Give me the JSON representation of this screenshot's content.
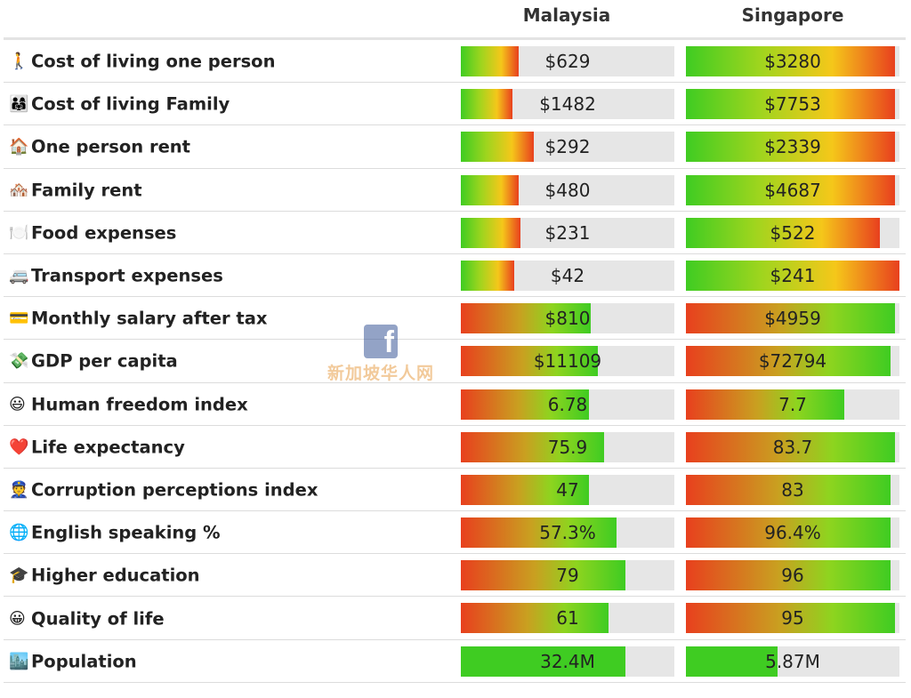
{
  "columns": [
    "Malaysia",
    "Singapore"
  ],
  "colors": {
    "cost_gradient": "#3fcc22 → #ffd21e → #e8401e",
    "benefit_gradient": "#e8401e → #a0d020 → #3fcc22",
    "population": "#3fcc22",
    "track": "#e6e6e6"
  },
  "rows": [
    {
      "icon": "walking-person-icon",
      "emoji": "🚶",
      "label": "Cost of living one person",
      "type": "cost",
      "a": {
        "value": "$629",
        "fraction": 0.27
      },
      "b": {
        "value": "$3280",
        "fraction": 0.98
      }
    },
    {
      "icon": "family-icon",
      "emoji": "👨‍👩‍👧",
      "label": "Cost of living Family",
      "type": "cost",
      "a": {
        "value": "$1482",
        "fraction": 0.24
      },
      "b": {
        "value": "$7753",
        "fraction": 0.98
      }
    },
    {
      "icon": "house-icon",
      "emoji": "🏠",
      "label": "One person rent",
      "type": "cost",
      "a": {
        "value": "$292",
        "fraction": 0.34
      },
      "b": {
        "value": "$2339",
        "fraction": 0.98
      }
    },
    {
      "icon": "houses-icon",
      "emoji": "🏘️",
      "label": "Family rent",
      "type": "cost",
      "a": {
        "value": "$480",
        "fraction": 0.27
      },
      "b": {
        "value": "$4687",
        "fraction": 0.98
      }
    },
    {
      "icon": "plate-icon",
      "emoji": "🍽️",
      "label": "Food expenses",
      "type": "cost",
      "a": {
        "value": "$231",
        "fraction": 0.28
      },
      "b": {
        "value": "$522",
        "fraction": 0.91
      }
    },
    {
      "icon": "bus-icon",
      "emoji": "🚐",
      "label": "Transport expenses",
      "type": "cost",
      "a": {
        "value": "$42",
        "fraction": 0.25
      },
      "b": {
        "value": "$241",
        "fraction": 1.0
      }
    },
    {
      "icon": "credit-card-icon",
      "emoji": "💳",
      "label": "Monthly salary after tax",
      "type": "benefit",
      "a": {
        "value": "$810",
        "fraction": 0.61
      },
      "b": {
        "value": "$4959",
        "fraction": 0.98
      }
    },
    {
      "icon": "money-wings-icon",
      "emoji": "💸",
      "label": "GDP per capita",
      "type": "benefit",
      "a": {
        "value": "$11109",
        "fraction": 0.64
      },
      "b": {
        "value": "$72794",
        "fraction": 0.96
      }
    },
    {
      "icon": "smiley-icon",
      "emoji": "😃",
      "label": "Human freedom index",
      "type": "benefit",
      "a": {
        "value": "6.78",
        "fraction": 0.6
      },
      "b": {
        "value": "7.7",
        "fraction": 0.74
      }
    },
    {
      "icon": "heart-icon",
      "emoji": "❤️",
      "label": "Life expectancy",
      "type": "benefit",
      "a": {
        "value": "75.9",
        "fraction": 0.67
      },
      "b": {
        "value": "83.7",
        "fraction": 0.98
      }
    },
    {
      "icon": "police-officer-icon",
      "emoji": "👮",
      "label": "Corruption perceptions index",
      "type": "benefit",
      "a": {
        "value": "47",
        "fraction": 0.6
      },
      "b": {
        "value": "83",
        "fraction": 0.96
      }
    },
    {
      "icon": "globe-icon",
      "emoji": "🌐",
      "label": "English speaking %",
      "type": "benefit",
      "a": {
        "value": "57.3%",
        "fraction": 0.73
      },
      "b": {
        "value": "96.4%",
        "fraction": 0.96
      }
    },
    {
      "icon": "graduation-cap-icon",
      "emoji": "🎓",
      "label": "Higher education",
      "type": "benefit",
      "a": {
        "value": "79",
        "fraction": 0.77
      },
      "b": {
        "value": "96",
        "fraction": 0.96
      }
    },
    {
      "icon": "smiling-face-icon",
      "emoji": "😀",
      "label": "Quality of life",
      "type": "benefit",
      "a": {
        "value": "61",
        "fraction": 0.69
      },
      "b": {
        "value": "95",
        "fraction": 0.98
      }
    },
    {
      "icon": "cityscape-icon",
      "emoji": "🏙️",
      "label": "Population",
      "type": "population",
      "a": {
        "value": "32.4M",
        "fraction": 0.77
      },
      "b": {
        "value": "5.87M",
        "fraction": 0.43
      }
    }
  ],
  "watermark": {
    "text": "新加坡华人网",
    "icon": "facebook-icon",
    "logo_letter": "f"
  }
}
